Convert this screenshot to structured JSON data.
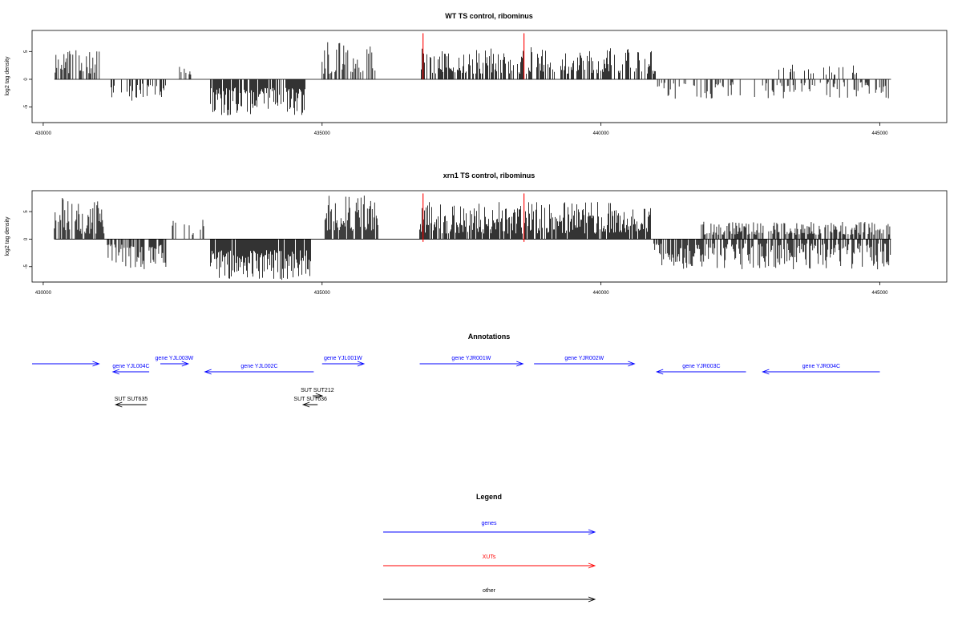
{
  "chart_data": [
    {
      "type": "bar",
      "title": "WT TS control, ribominus",
      "ylabel": "log2 tag density",
      "xlim": [
        429800,
        446200
      ],
      "ylim": [
        -7.8,
        8.8
      ],
      "xticks": [
        "430000",
        "435000",
        "440000",
        "445000"
      ],
      "yticks": [
        "-5",
        "0",
        "5"
      ],
      "axis_extent": [
        430200,
        445200
      ],
      "markers": [
        {
          "x": 436810,
          "top": 8.3,
          "bottom": 0,
          "color": "#ff0000"
        },
        {
          "x": 438620,
          "top": 8.3,
          "bottom": 0,
          "color": "#ff0000"
        }
      ],
      "segments": [
        {
          "x0": 430200,
          "x1": 431010,
          "sign": 1,
          "min": 1.0,
          "max": 6.0,
          "density": 0.6,
          "seed": 11
        },
        {
          "x0": 431200,
          "x1": 432200,
          "sign": -1,
          "min": 0.8,
          "max": 4.0,
          "density": 0.4,
          "seed": 12
        },
        {
          "x0": 432400,
          "x1": 432860,
          "sign": 1,
          "min": 0.8,
          "max": 2.5,
          "density": 0.2,
          "seed": 13
        },
        {
          "x0": 433000,
          "x1": 434700,
          "sign": -1,
          "min": 1.5,
          "max": 6.5,
          "density": 0.85,
          "seed": 14
        },
        {
          "x0": 435000,
          "x1": 435950,
          "sign": 1,
          "min": 1.0,
          "max": 7.0,
          "density": 0.55,
          "seed": 15
        },
        {
          "x0": 436780,
          "x1": 440980,
          "sign": 1,
          "min": 1.0,
          "max": 5.8,
          "density": 0.65,
          "seed": 16
        },
        {
          "x0": 441000,
          "x1": 445200,
          "sign": -1,
          "min": 0.5,
          "max": 3.5,
          "density": 0.3,
          "seed": 17
        },
        {
          "x0": 443000,
          "x1": 444600,
          "sign": 1,
          "min": 0.8,
          "max": 2.8,
          "density": 0.2,
          "seed": 18
        }
      ]
    },
    {
      "type": "bar",
      "title": "xrn1 TS control, ribominus",
      "ylabel": "log2 tag density",
      "xlim": [
        429800,
        446200
      ],
      "ylim": [
        -7.8,
        8.8
      ],
      "xticks": [
        "430000",
        "435000",
        "440000",
        "445000"
      ],
      "yticks": [
        "-5",
        "0",
        "5"
      ],
      "axis_extent": [
        430200,
        445200
      ],
      "markers": [
        {
          "x": 436810,
          "top": 8.3,
          "bottom": -0.5,
          "color": "#ff0000"
        },
        {
          "x": 438620,
          "top": 8.3,
          "bottom": -0.5,
          "color": "#ff0000"
        }
      ],
      "segments": [
        {
          "x0": 430200,
          "x1": 431100,
          "sign": 1,
          "min": 1.0,
          "max": 7.5,
          "density": 0.8,
          "seed": 21
        },
        {
          "x0": 431150,
          "x1": 432200,
          "sign": -1,
          "min": 1.0,
          "max": 5.5,
          "density": 0.7,
          "seed": 22
        },
        {
          "x0": 432200,
          "x1": 432900,
          "sign": 1,
          "min": 0.8,
          "max": 4.0,
          "density": 0.3,
          "seed": 23
        },
        {
          "x0": 433000,
          "x1": 434800,
          "sign": -1,
          "min": 2.0,
          "max": 7.5,
          "density": 0.95,
          "seed": 24
        },
        {
          "x0": 435050,
          "x1": 436000,
          "sign": 1,
          "min": 1.5,
          "max": 8.0,
          "density": 0.85,
          "seed": 25
        },
        {
          "x0": 436750,
          "x1": 440900,
          "sign": 1,
          "min": 1.0,
          "max": 6.8,
          "density": 0.85,
          "seed": 26
        },
        {
          "x0": 440950,
          "x1": 445200,
          "sign": -1,
          "min": 0.8,
          "max": 5.5,
          "density": 0.7,
          "seed": 27
        },
        {
          "x0": 441800,
          "x1": 445200,
          "sign": 1,
          "min": 0.8,
          "max": 3.2,
          "density": 0.6,
          "seed": 28
        }
      ]
    }
  ],
  "annotations": {
    "title": "Annotations",
    "genes": [
      {
        "label": "",
        "x0": 429800,
        "x1": 431000,
        "dir": "right",
        "row": 1
      },
      {
        "label": "gene YJL004C",
        "x0": 431250,
        "x1": 431900,
        "dir": "left",
        "row": 2
      },
      {
        "label": "gene YJL003W",
        "x0": 432100,
        "x1": 432600,
        "dir": "right",
        "row": 1
      },
      {
        "label": "gene YJL002C",
        "x0": 432900,
        "x1": 434850,
        "dir": "left",
        "row": 2
      },
      {
        "label": "gene YJL001W",
        "x0": 435000,
        "x1": 435750,
        "dir": "right",
        "row": 1
      },
      {
        "label": "gene YJR001W",
        "x0": 436750,
        "x1": 438600,
        "dir": "right",
        "row": 1
      },
      {
        "label": "gene YJR002W",
        "x0": 438800,
        "x1": 440600,
        "dir": "right",
        "row": 1
      },
      {
        "label": "gene YJR003C",
        "x0": 441000,
        "x1": 442600,
        "dir": "left",
        "row": 2
      },
      {
        "label": "gene YJR004C",
        "x0": 442900,
        "x1": 445000,
        "dir": "left",
        "row": 2
      }
    ],
    "other": [
      {
        "label": "SUT SUT212",
        "x0": 434830,
        "x1": 435000,
        "dir": "right",
        "row": 3
      },
      {
        "label": "SUT SUT635",
        "x0": 431300,
        "x1": 431850,
        "dir": "left",
        "row": 4
      },
      {
        "label": "SUT SUT636",
        "x0": 434660,
        "x1": 434920,
        "dir": "left",
        "row": 4
      }
    ]
  },
  "legend": {
    "title": "Legend",
    "items": [
      {
        "label": "genes",
        "color": "#0000ff"
      },
      {
        "label": "XUTs",
        "color": "#ff0000"
      },
      {
        "label": "other",
        "color": "#000000"
      }
    ]
  }
}
